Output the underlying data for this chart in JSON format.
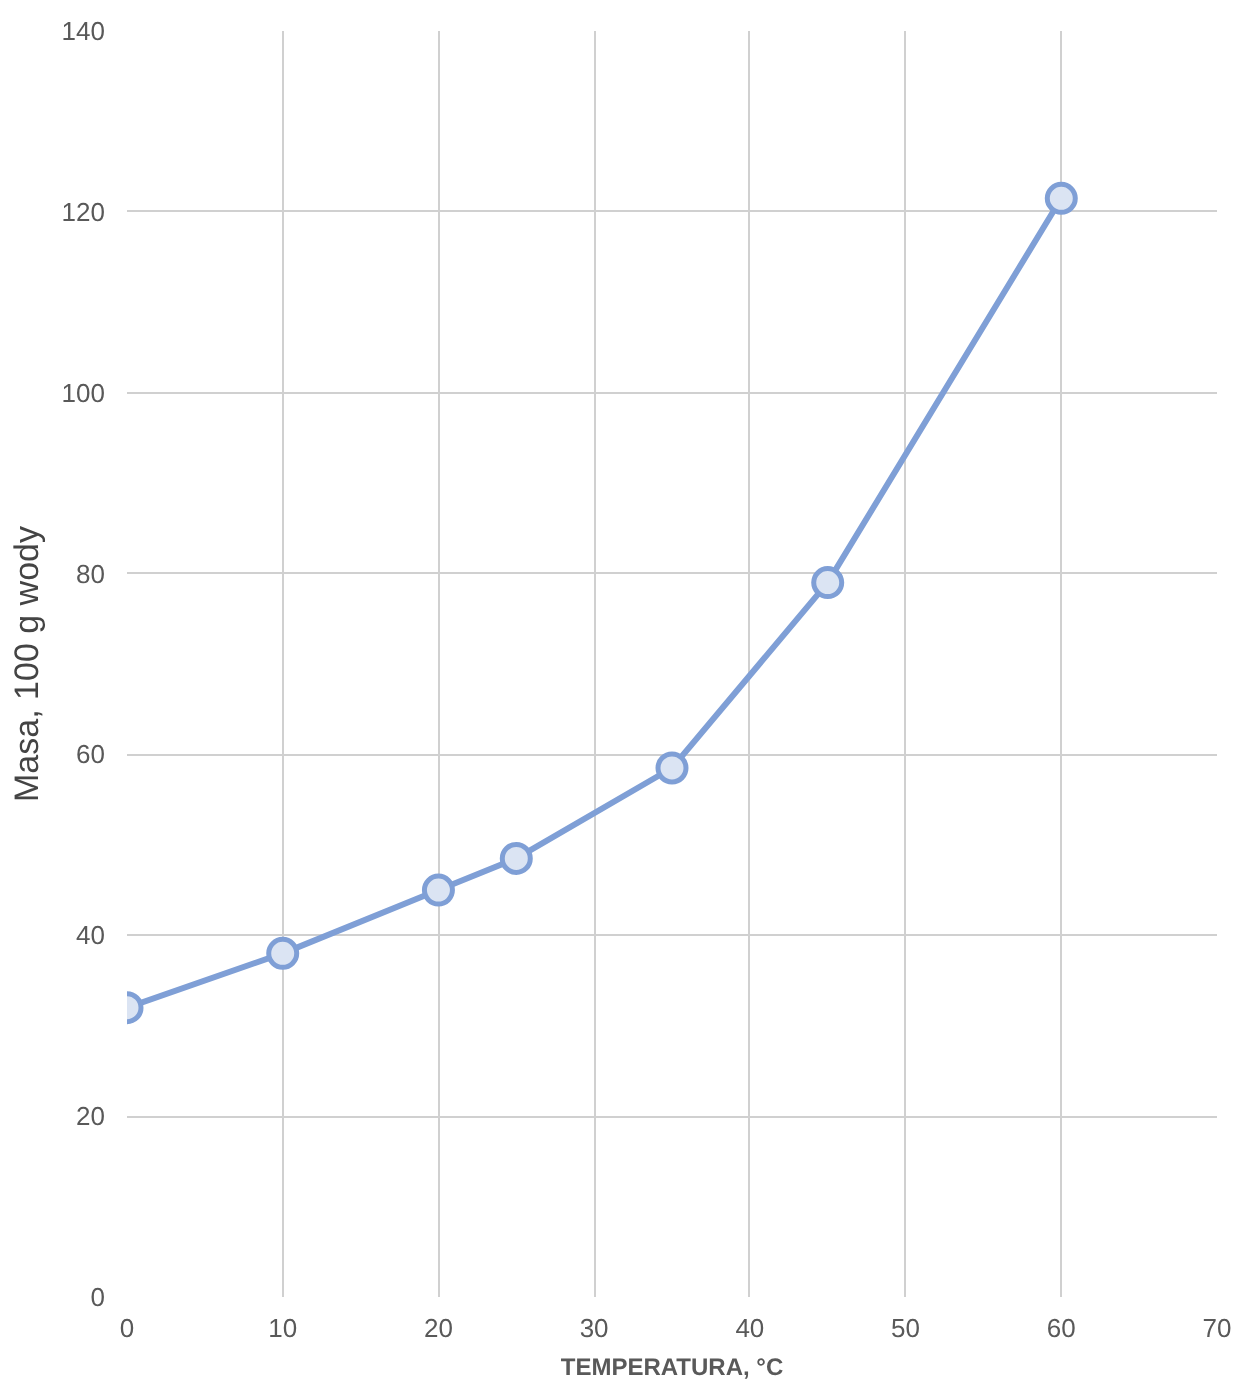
{
  "chart_data": {
    "type": "line",
    "xlabel": "TEMPERATURA, °C",
    "ylabel": "Masa, 100 g wody",
    "x": [
      0,
      10,
      20,
      25,
      35,
      45,
      60
    ],
    "series": [
      {
        "color": "#7f9fd6",
        "values": [
          32,
          38,
          45,
          48.5,
          58.5,
          79,
          121.5
        ]
      }
    ],
    "xlim": [
      0,
      70
    ],
    "ylim": [
      0,
      140
    ],
    "xticks": [
      0,
      10,
      20,
      30,
      40,
      50,
      60,
      70
    ],
    "yticks": [
      0,
      20,
      40,
      60,
      80,
      100,
      120,
      140
    ],
    "grid": true,
    "marker": "circle",
    "line_style": "solid"
  }
}
